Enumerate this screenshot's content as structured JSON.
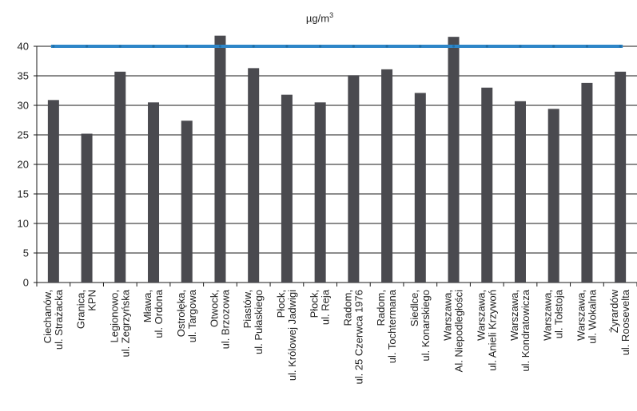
{
  "chart_data": {
    "type": "bar",
    "unit_label_base": "µg/m",
    "unit_label_sup": "3",
    "ylim": [
      0,
      40
    ],
    "y_ticks": [
      0,
      5,
      10,
      15,
      20,
      25,
      30,
      35,
      40
    ],
    "grid": true,
    "categories": [
      [
        "Ciechanów,",
        "ul. Strażacka"
      ],
      [
        "Granica,",
        "KPN"
      ],
      [
        "Legionowo,",
        "ul. Zegrzyńska"
      ],
      [
        "Mława,",
        "ul. Ordona"
      ],
      [
        "Ostrołęka,",
        "ul. Targowa"
      ],
      [
        "Otwock,",
        "ul. Brzozowa"
      ],
      [
        "Piastów,",
        "ul. Pułaskiego"
      ],
      [
        "Płock,",
        "ul. Królowej Jadwigi"
      ],
      [
        "Płock,",
        "ul. Reja"
      ],
      [
        "Radom,",
        "ul. 25 Czerwca 1976"
      ],
      [
        "Radom,",
        "ul. Tochtermana"
      ],
      [
        "Siedlce,",
        "ul. Konarskiego"
      ],
      [
        "Warszawa,",
        "Al. Niepodległości"
      ],
      [
        "Warszawa,",
        "ul. Anieli Krzywoń"
      ],
      [
        "Warszawa,",
        "ul. Kondratowicza"
      ],
      [
        "Warszawa,",
        "ul. Tołstoja"
      ],
      [
        "Warszawa,",
        "ul. Wokalna"
      ],
      [
        "Żyrardów",
        "ul. Roosevelta"
      ]
    ],
    "series": [
      {
        "type": "bar",
        "color": "#4a4a4f",
        "values": [
          30.9,
          25.2,
          35.7,
          30.5,
          27.4,
          41.8,
          36.3,
          31.8,
          30.5,
          35.1,
          36.1,
          32.1,
          41.6,
          33.0,
          30.7,
          29.4,
          33.8,
          35.7
        ]
      },
      {
        "type": "line",
        "color": "#2e86c8",
        "values": [
          40,
          40,
          40,
          40,
          40,
          40,
          40,
          40,
          40,
          40,
          40,
          40,
          40,
          40,
          40,
          40,
          40,
          40
        ]
      }
    ]
  }
}
